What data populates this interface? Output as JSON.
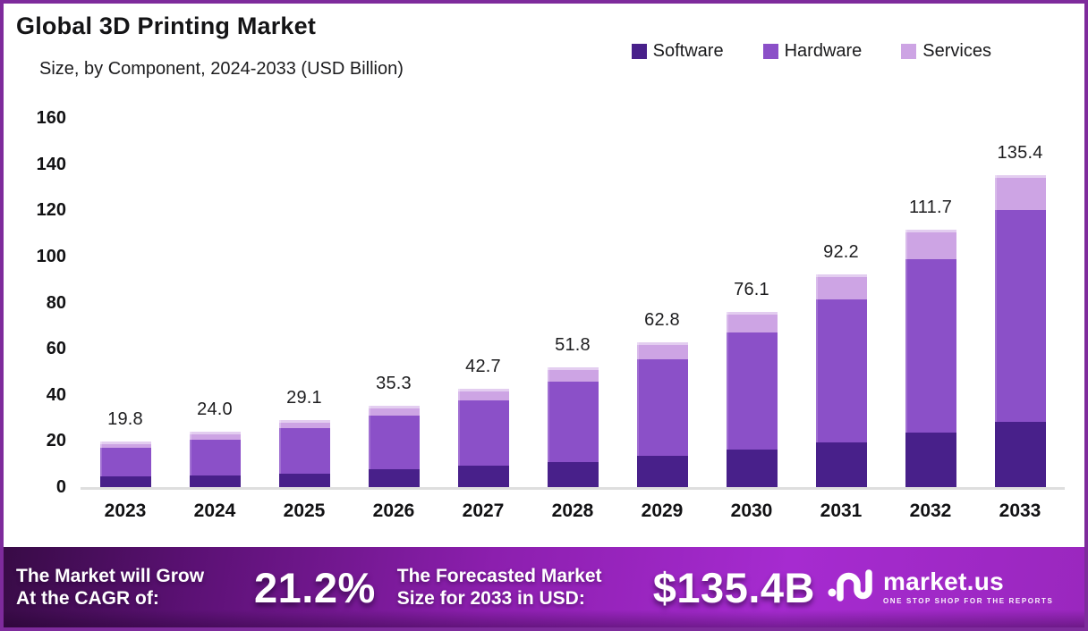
{
  "header": {
    "title": "Global 3D Printing Market",
    "subtitle": "Size, by Component, 2024-2033 (USD Billion)"
  },
  "legend": {
    "items": [
      {
        "label": "Software",
        "color": "#48208a"
      },
      {
        "label": "Hardware",
        "color": "#8b50c8"
      },
      {
        "label": "Services",
        "color": "#cda4e4"
      }
    ]
  },
  "chart_data": {
    "type": "bar",
    "stacked": true,
    "title": "Global 3D Printing Market Size, by Component, 2024-2033 (USD Billion)",
    "unit": "USD Billion",
    "categories": [
      "2023",
      "2024",
      "2025",
      "2026",
      "2027",
      "2028",
      "2029",
      "2030",
      "2031",
      "2032",
      "2033"
    ],
    "series": [
      {
        "name": "Software",
        "color": "#48208a",
        "values": [
          4.5,
          5.1,
          6.0,
          7.8,
          9.4,
          11.0,
          13.5,
          16.4,
          19.4,
          23.5,
          28.3
        ]
      },
      {
        "name": "Hardware",
        "color": "#8b50c8",
        "values": [
          12.4,
          15.5,
          19.6,
          23.2,
          28.2,
          34.7,
          41.9,
          50.7,
          61.9,
          75.4,
          91.8
        ]
      },
      {
        "name": "Services",
        "color": "#cda4e4",
        "values": [
          2.9,
          3.4,
          3.5,
          4.3,
          5.1,
          6.1,
          7.4,
          9.0,
          10.9,
          12.8,
          15.3
        ]
      }
    ],
    "totals": [
      19.8,
      24.0,
      29.1,
      35.3,
      42.7,
      51.8,
      62.8,
      76.1,
      92.2,
      111.7,
      135.4
    ],
    "totals_labels": [
      "19.8",
      "24.0",
      "29.1",
      "35.3",
      "42.7",
      "51.8",
      "62.8",
      "76.1",
      "92.2",
      "111.7",
      "135.4"
    ],
    "ylim": [
      0,
      160
    ],
    "yticks": [
      0,
      20,
      40,
      60,
      80,
      100,
      120,
      140,
      160
    ],
    "grid": false,
    "legend_position": "top-right"
  },
  "banner": {
    "cagr_label_line1": "The Market will Grow",
    "cagr_label_line2": "At the CAGR of:",
    "cagr_value": "21.2%",
    "forecast_label_line1": "The Forecasted Market",
    "forecast_label_line2": "Size for 2033 in USD:",
    "forecast_value": "$135.4B",
    "brand": "market.us",
    "brand_tagline": "ONE STOP SHOP FOR THE REPORTS"
  },
  "colors": {
    "frame_border": "#7e2b9c",
    "software": "#48208a",
    "hardware": "#8b50c8",
    "services": "#cda4e4",
    "axis_text": "#121214",
    "baseline": "#dedede",
    "banner_gradient_start": "#380b46",
    "banner_gradient_end": "#a62bd0"
  }
}
